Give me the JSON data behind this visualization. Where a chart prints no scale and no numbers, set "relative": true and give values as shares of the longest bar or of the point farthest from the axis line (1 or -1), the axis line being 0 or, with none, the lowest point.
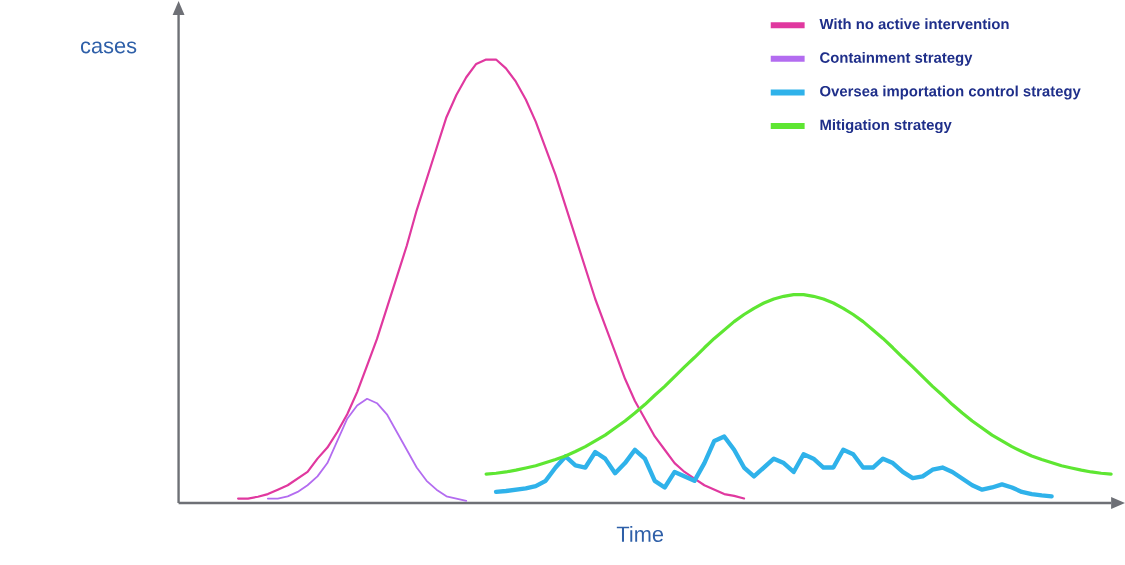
{
  "chart_data": {
    "type": "line",
    "relative": true,
    "xlabel": "Time",
    "ylabel": "cases",
    "legend": "top right",
    "marker": "none",
    "line_style": "solid",
    "categories": [
      null,
      null,
      null,
      null,
      null,
      null,
      null,
      null,
      null,
      null,
      null,
      null,
      null,
      null,
      null,
      null,
      null,
      null,
      null,
      null,
      null,
      null,
      null,
      null,
      null,
      null,
      null,
      null,
      null,
      null,
      null,
      null,
      null,
      null,
      null,
      null,
      null,
      null,
      null,
      null,
      null,
      null,
      null,
      null,
      null,
      null,
      null,
      null,
      null,
      null,
      null,
      null,
      null,
      null,
      null,
      null,
      null,
      null,
      null,
      null,
      null,
      null,
      null,
      null,
      null,
      null,
      null,
      null,
      null,
      null,
      null,
      null,
      null,
      null,
      null,
      null,
      null,
      null,
      null,
      null,
      null,
      null,
      null,
      null,
      null,
      null,
      null,
      null,
      null,
      null,
      null,
      null,
      null,
      null,
      null
    ],
    "series": [
      {
        "name": "With no active intervention",
        "color": "#e0389f",
        "values": [
          null,
          null,
          null,
          null,
          null,
          null,
          0.01,
          0.01,
          0.014,
          0.02,
          0.03,
          0.04,
          0.055,
          0.07,
          0.1,
          0.125,
          0.16,
          0.2,
          0.25,
          0.31,
          0.37,
          0.44,
          0.51,
          0.58,
          0.66,
          0.73,
          0.8,
          0.87,
          0.92,
          0.96,
          0.99,
          1.0,
          1.0,
          0.98,
          0.95,
          0.91,
          0.86,
          0.8,
          0.74,
          0.67,
          0.6,
          0.53,
          0.46,
          0.4,
          0.34,
          0.28,
          0.23,
          0.19,
          0.15,
          0.12,
          0.09,
          0.07,
          0.055,
          0.04,
          0.03,
          0.02,
          0.016,
          0.01,
          null,
          null,
          null,
          null,
          null,
          null,
          null,
          null,
          null,
          null,
          null,
          null,
          null,
          null,
          null,
          null,
          null,
          null,
          null,
          null,
          null,
          null,
          null,
          null,
          null,
          null,
          null,
          null,
          null,
          null,
          null,
          null,
          null,
          null,
          null,
          null,
          null
        ]
      },
      {
        "name": "Containment strategy",
        "color": "#b36cf0",
        "values": [
          null,
          null,
          null,
          null,
          null,
          null,
          null,
          null,
          null,
          0.01,
          0.01,
          0.015,
          0.025,
          0.04,
          0.06,
          0.09,
          0.14,
          0.19,
          0.22,
          0.235,
          0.225,
          0.2,
          0.16,
          0.12,
          0.08,
          0.05,
          0.03,
          0.015,
          0.01,
          0.005,
          null,
          null,
          null,
          null,
          null,
          null,
          null,
          null,
          null,
          null,
          null,
          null,
          null,
          null,
          null,
          null,
          null,
          null,
          null,
          null,
          null,
          null,
          null,
          null,
          null,
          null,
          null,
          null,
          null,
          null,
          null,
          null,
          null,
          null,
          null,
          null,
          null,
          null,
          null,
          null,
          null,
          null,
          null,
          null,
          null,
          null,
          null,
          null,
          null,
          null,
          null,
          null,
          null,
          null,
          null,
          null,
          null,
          null,
          null,
          null,
          null,
          null,
          null,
          null,
          null
        ]
      },
      {
        "name": "Oversea importation control strategy",
        "color": "#2fb2ea",
        "values": [
          null,
          null,
          null,
          null,
          null,
          null,
          null,
          null,
          null,
          null,
          null,
          null,
          null,
          null,
          null,
          null,
          null,
          null,
          null,
          null,
          null,
          null,
          null,
          null,
          null,
          null,
          null,
          null,
          null,
          null,
          null,
          null,
          0.025,
          0.027,
          0.03,
          0.033,
          0.038,
          0.05,
          0.08,
          0.105,
          0.085,
          0.08,
          0.115,
          0.1,
          0.067,
          0.09,
          0.12,
          0.1,
          0.05,
          0.035,
          0.07,
          0.06,
          0.05,
          0.09,
          0.14,
          0.15,
          0.12,
          0.08,
          0.06,
          0.08,
          0.1,
          0.09,
          0.07,
          0.11,
          0.1,
          0.08,
          0.08,
          0.12,
          0.11,
          0.08,
          0.08,
          0.1,
          0.09,
          0.07,
          0.056,
          0.06,
          0.075,
          0.08,
          0.07,
          0.055,
          0.04,
          0.03,
          0.035,
          0.042,
          0.035,
          0.025,
          0.02,
          0.017,
          0.015,
          null,
          null,
          null,
          null,
          null,
          null
        ]
      },
      {
        "name": "Mitigation strategy",
        "color": "#5ee632",
        "values": [
          null,
          null,
          null,
          null,
          null,
          null,
          null,
          null,
          null,
          null,
          null,
          null,
          null,
          null,
          null,
          null,
          null,
          null,
          null,
          null,
          null,
          null,
          null,
          null,
          null,
          null,
          null,
          null,
          null,
          null,
          null,
          0.065,
          0.067,
          0.07,
          0.074,
          0.079,
          0.084,
          0.091,
          0.098,
          0.106,
          0.116,
          0.127,
          0.14,
          0.153,
          0.169,
          0.185,
          0.203,
          0.222,
          0.243,
          0.263,
          0.285,
          0.307,
          0.328,
          0.35,
          0.371,
          0.39,
          0.409,
          0.425,
          0.439,
          0.451,
          0.46,
          0.466,
          0.47,
          0.47,
          0.466,
          0.46,
          0.451,
          0.439,
          0.425,
          0.409,
          0.39,
          0.371,
          0.35,
          0.328,
          0.307,
          0.285,
          0.263,
          0.243,
          0.222,
          0.203,
          0.185,
          0.169,
          0.153,
          0.14,
          0.127,
          0.116,
          0.106,
          0.098,
          0.091,
          0.084,
          0.079,
          0.074,
          0.07,
          0.067,
          0.065
        ]
      }
    ]
  }
}
